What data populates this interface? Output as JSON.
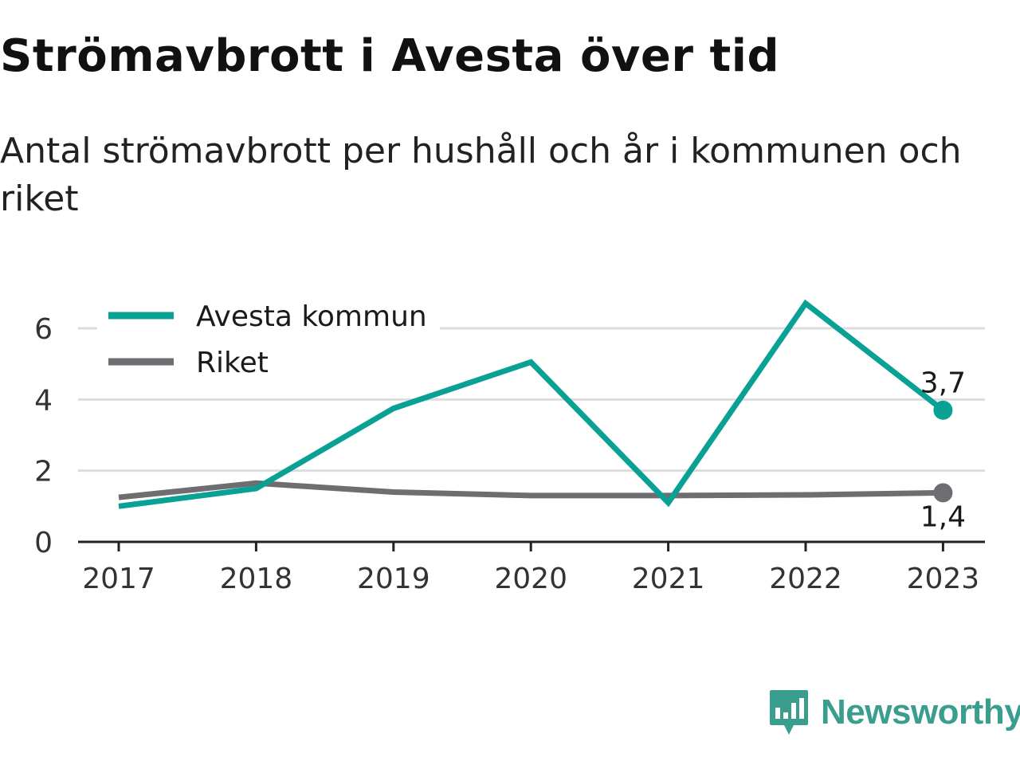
{
  "page": {
    "title": "Strömavbrott i Avesta över tid",
    "subtitle": "Antal strömavbrott per hushåll och år i kommunen och riket"
  },
  "brand": {
    "name": "Newsworthy",
    "color": "#3a9e8f",
    "icon": "newsworthy-logo-icon"
  },
  "colors": {
    "avesta": "#0aa195",
    "riket": "#6e6d72",
    "grid": "#dddddd",
    "axis": "#222222"
  },
  "chart_data": {
    "type": "line",
    "title": "Strömavbrott i Avesta över tid",
    "subtitle": "Antal strömavbrott per hushåll och år i kommunen och riket",
    "x": [
      "2017",
      "2018",
      "2019",
      "2020",
      "2021",
      "2022",
      "2023"
    ],
    "ylim": [
      0,
      6.6
    ],
    "yticks": [
      0,
      2,
      4,
      6
    ],
    "grid": true,
    "legend_position": "top-left",
    "series": [
      {
        "name": "Avesta kommun",
        "color": "#0aa195",
        "values": [
          1.0,
          1.5,
          3.75,
          5.05,
          1.1,
          6.7,
          3.7
        ],
        "end_label": "3,7"
      },
      {
        "name": "Riket",
        "color": "#6e6d72",
        "values": [
          1.25,
          1.65,
          1.4,
          1.3,
          1.3,
          1.32,
          1.38
        ],
        "end_label": "1,4"
      }
    ]
  }
}
